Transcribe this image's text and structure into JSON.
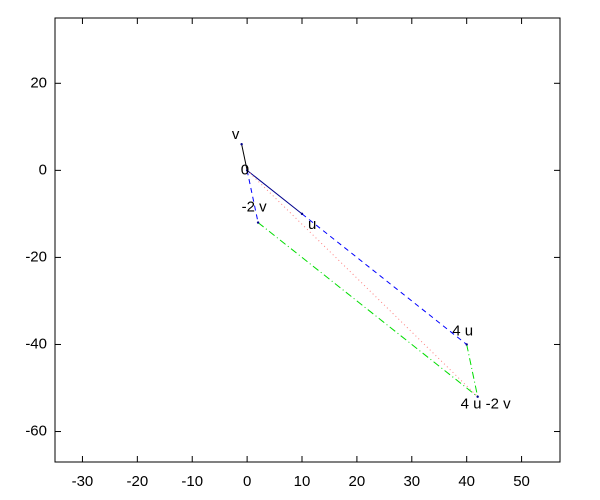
{
  "chart_data": {
    "type": "vector",
    "xlim": [
      -35,
      57
    ],
    "ylim": [
      -67,
      35
    ],
    "xticks": [
      -30,
      -20,
      -10,
      0,
      10,
      20,
      30,
      40,
      50
    ],
    "yticks": [
      -60,
      -40,
      -20,
      0,
      20
    ],
    "series": [
      {
        "color": "#00008b",
        "style": "solid",
        "x": [
          0,
          10
        ],
        "y": [
          0,
          -10
        ]
      },
      {
        "color": "#000000",
        "style": "solid",
        "x": [
          0,
          -1
        ],
        "y": [
          0,
          6
        ]
      },
      {
        "color": "#0000ff",
        "style": "dashed",
        "x": [
          0,
          2,
          null,
          10,
          40
        ],
        "y": [
          0,
          -12,
          null,
          -10,
          -40
        ]
      },
      {
        "color": "#00dd00",
        "style": "dashdot",
        "x": [
          2,
          42,
          null,
          40,
          42
        ],
        "y": [
          -12,
          -52,
          null,
          -40,
          -52
        ]
      },
      {
        "color": "#ff8080",
        "style": "dotted",
        "x": [
          0,
          42
        ],
        "y": [
          0,
          -52
        ]
      }
    ],
    "annotations": [
      {
        "text": "v",
        "x": -1,
        "y": 6
      },
      {
        "text": "0",
        "x": 0,
        "y": 0
      },
      {
        "text": "-2 v",
        "x": 2,
        "y": -12
      },
      {
        "text": "u",
        "x": 10,
        "y": -10
      },
      {
        "text": "4 u",
        "x": 40,
        "y": -40
      },
      {
        "text": "4 u -2 v",
        "x": 42,
        "y": -52
      }
    ]
  }
}
